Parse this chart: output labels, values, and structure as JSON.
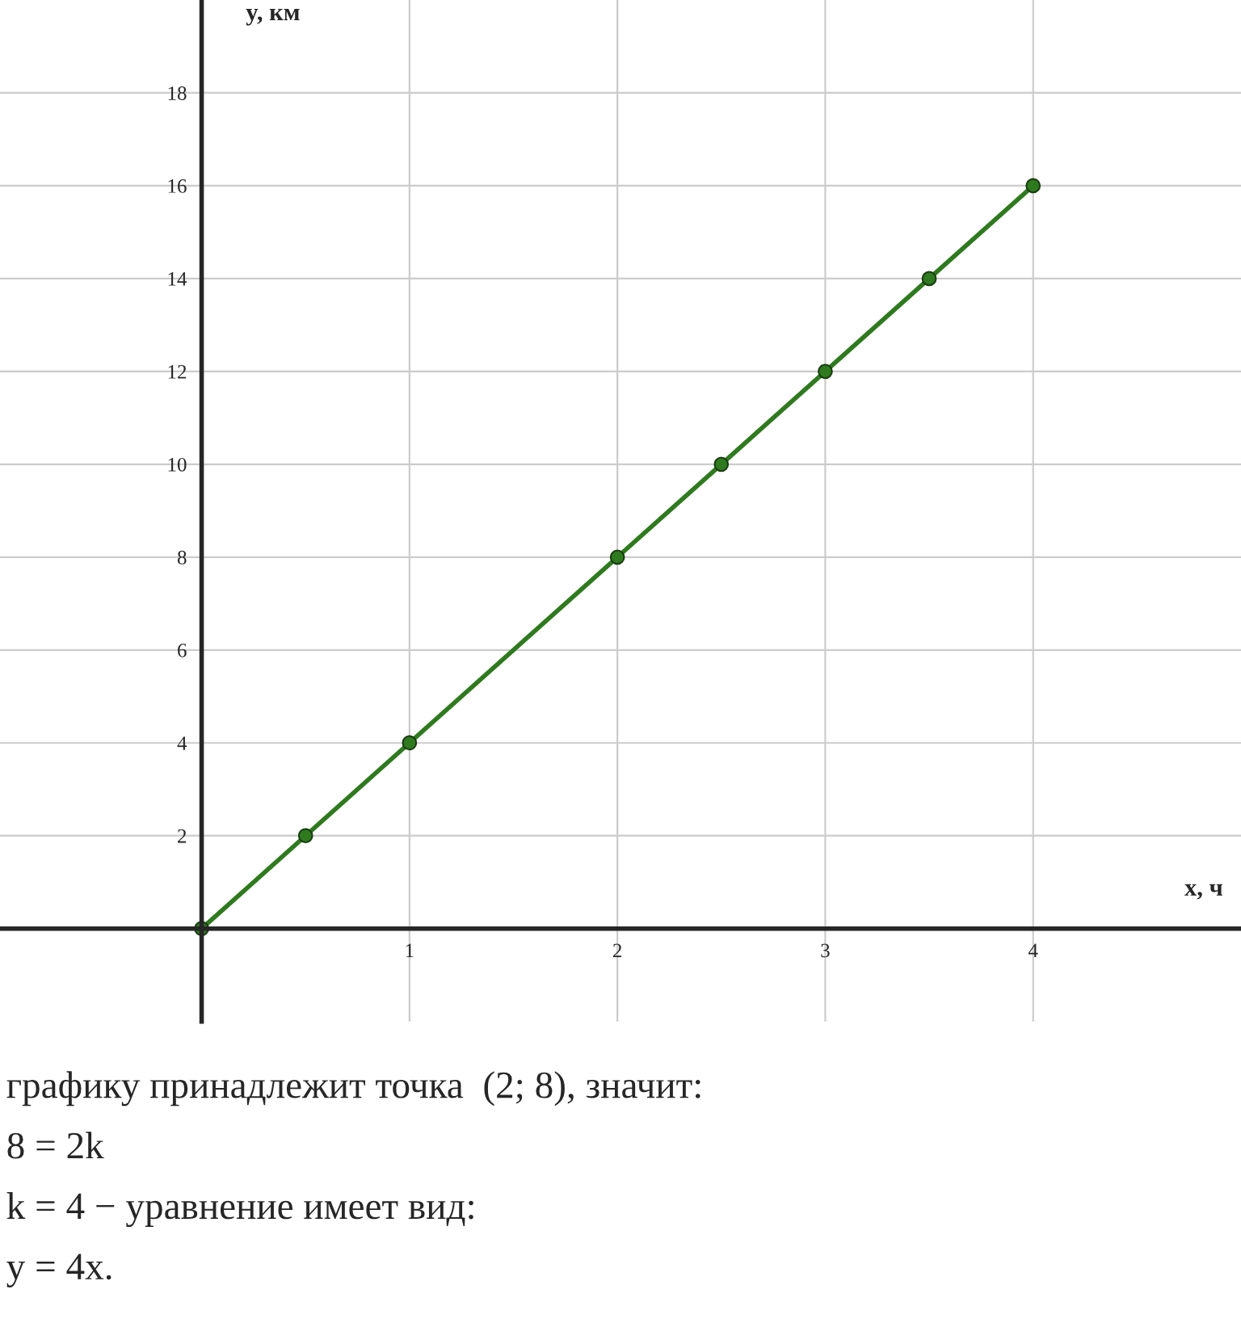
{
  "chart_data": {
    "type": "line",
    "xlabel": "x, ч",
    "ylabel": "y, км",
    "x": [
      0,
      0.5,
      1,
      2,
      2.5,
      3,
      3.5,
      4
    ],
    "series": [
      {
        "color": "#2f7a1f",
        "values": [
          0,
          2,
          4,
          8,
          10,
          12,
          14,
          16
        ]
      }
    ],
    "xlim": [
      -0.97,
      5
    ],
    "ylim": [
      -2,
      20
    ],
    "xticks": [
      1,
      2,
      3,
      4
    ],
    "yticks": [
      2,
      4,
      6,
      8,
      10,
      12,
      14,
      16,
      18
    ],
    "grid": true,
    "marker": "circle",
    "line_style": "solid",
    "annotations": [
      "графику принадлежит точка  (2; 8), значит:",
      "8 = 2k",
      "k = 4 − уравнение имеет вид:",
      "y = 4x."
    ]
  }
}
